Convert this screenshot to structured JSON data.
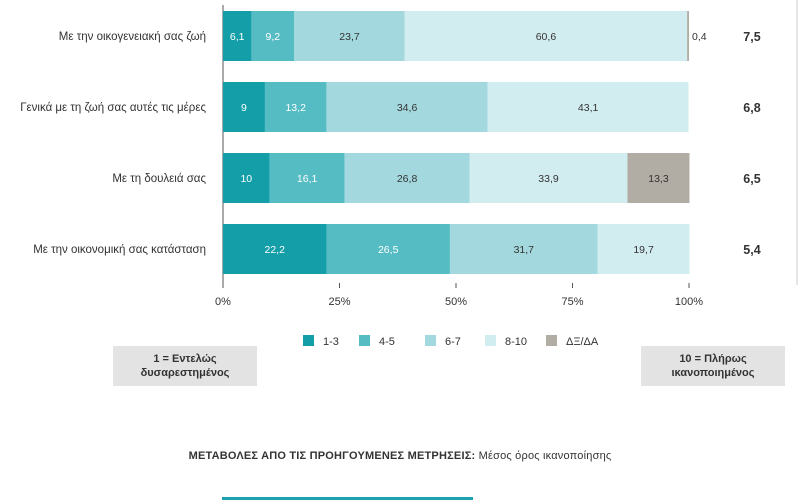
{
  "chart_data": {
    "type": "bar",
    "orientation": "horizontal",
    "stacked": true,
    "categories": [
      "Με την οικογενειακή σας ζωή",
      "Γενικά με τη ζωή σας αυτές τις μέρες",
      "Με τη δουλειά σας",
      "Με την οικονομική σας κατάσταση"
    ],
    "series": [
      {
        "name": "1-3",
        "color": "#149ea8",
        "values": [
          6.1,
          9,
          10,
          22.2
        ],
        "labels": [
          "6,1",
          "9",
          "10",
          "22,2"
        ]
      },
      {
        "name": "4-5",
        "color": "#55bcc4",
        "values": [
          9.2,
          13.2,
          16.1,
          26.5
        ],
        "labels": [
          "9,2",
          "13,2",
          "16,1",
          "26,5"
        ]
      },
      {
        "name": "6-7",
        "color": "#a3d9de",
        "values": [
          23.7,
          34.6,
          26.8,
          31.7
        ],
        "labels": [
          "23,7",
          "34,6",
          "26,8",
          "31,7"
        ]
      },
      {
        "name": "8-10",
        "color": "#d2edf0",
        "values": [
          60.6,
          43.1,
          33.9,
          19.7
        ],
        "labels": [
          "60,6",
          "43,1",
          "33,9",
          "19,7"
        ]
      },
      {
        "name": "ΔΞ/ΔΑ",
        "color": "#b1aca4",
        "values": [
          0.4,
          0,
          13.3,
          0
        ],
        "labels": [
          "0,4",
          "",
          "13,3",
          ""
        ]
      }
    ],
    "mean_values": [
      7.5,
      6.8,
      6.5,
      5.4
    ],
    "mean_labels": [
      "7,5",
      "6,8",
      "6,5",
      "5,4"
    ],
    "x_ticks": [
      "0%",
      "25%",
      "50%",
      "75%",
      "100%"
    ],
    "xlim": [
      0,
      100
    ],
    "legend_position": "bottom-center",
    "grid": false
  },
  "scale": {
    "low_line1": "1 = Εντελώς",
    "low_line2": "δυσαρεστημένος",
    "high_line1": "10 = Πλήρως",
    "high_line2": "ικανοποιημένος"
  },
  "changes": {
    "title": "ΜΕΤΑΒΟΛΕΣ ΑΠΟ ΤΙΣ ΠΡΟΗΓΟΥΜΕΝΕΣ ΜΕΤΡΗΣΕΙΣ:",
    "subtitle": "Μέσος όρος ικανοποίησης"
  }
}
